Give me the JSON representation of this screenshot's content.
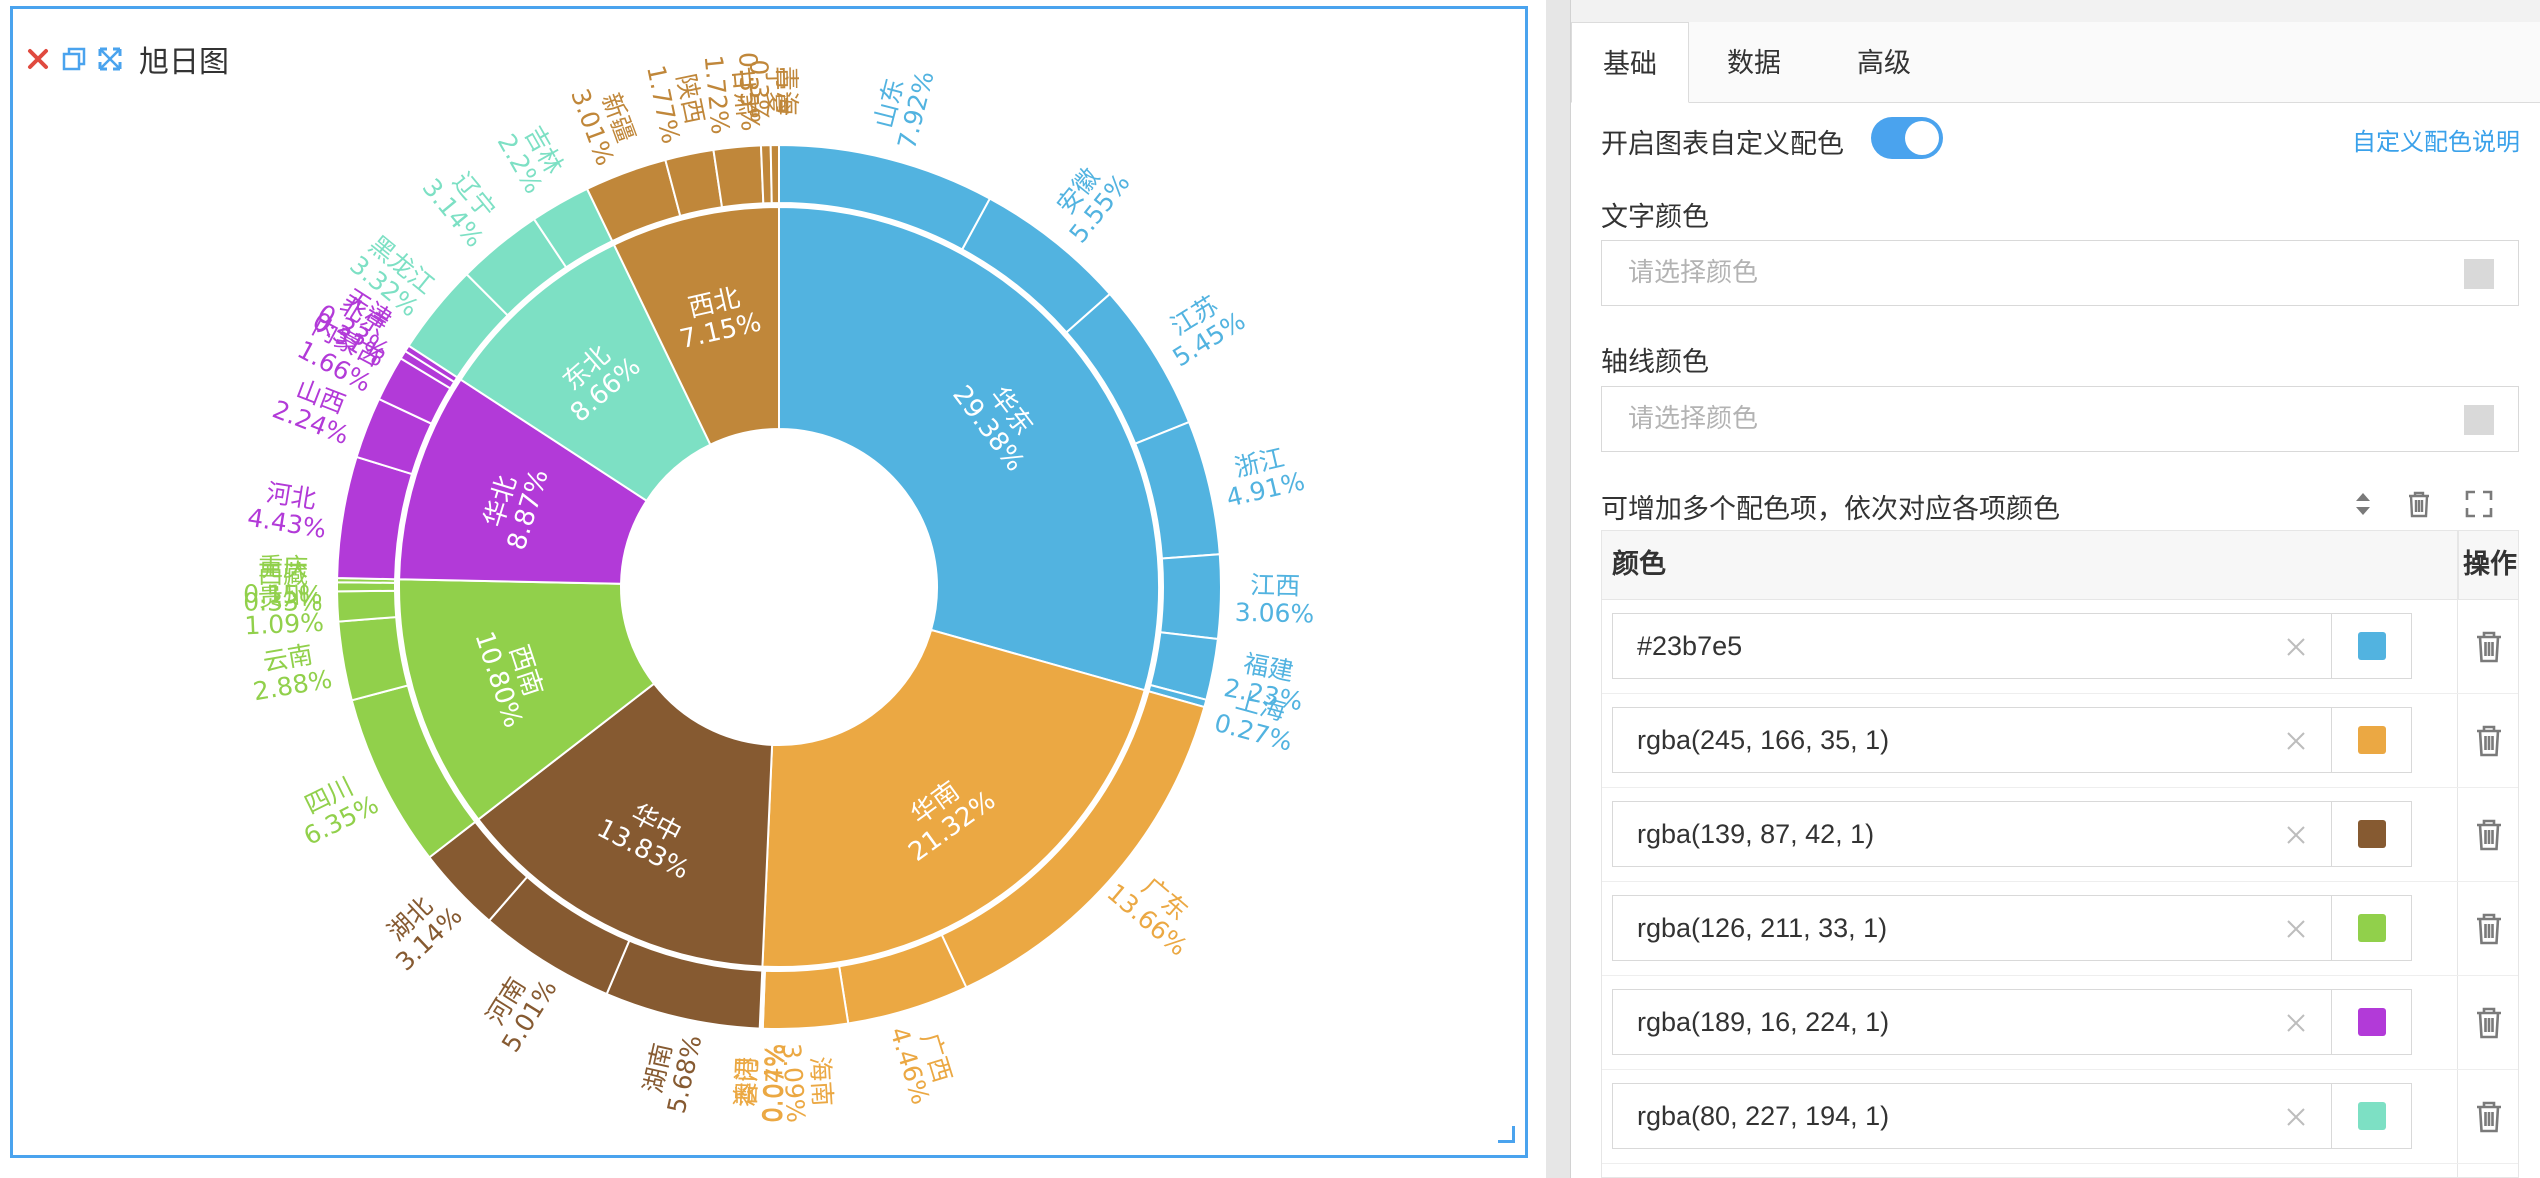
{
  "chart": {
    "title": "旭日图",
    "toolbar": {
      "close_icon": "close-icon",
      "copy_icon": "copy-icon",
      "fullscreen_icon": "expand-icon"
    }
  },
  "chart_data": {
    "type": "sunburst",
    "title": "旭日图",
    "unit": "%",
    "colors": {
      "华东": "#52b3e0",
      "华南": "#eba843",
      "华中": "#865a31",
      "西南": "#91d04b",
      "华北": "#b23ad8",
      "东北": "#7de0c4",
      "西北": "#c0873a"
    },
    "regions": [
      {
        "name": "华东",
        "value": 29.38,
        "children": [
          {
            "name": "山东",
            "value": 7.92
          },
          {
            "name": "安徽",
            "value": 5.55
          },
          {
            "name": "江苏",
            "value": 5.45
          },
          {
            "name": "浙江",
            "value": 4.91
          },
          {
            "name": "江西",
            "value": 3.06
          },
          {
            "name": "福建",
            "value": 2.23
          },
          {
            "name": "上海",
            "value": 0.27
          }
        ]
      },
      {
        "name": "华南",
        "value": 21.32,
        "children": [
          {
            "name": "广东",
            "value": 13.66
          },
          {
            "name": "广西",
            "value": 4.46
          },
          {
            "name": "海南",
            "value": 3.09
          },
          {
            "name": "香港",
            "value": 0.07
          },
          {
            "name": "澳门",
            "value": 0.04
          }
        ]
      },
      {
        "name": "华中",
        "value": 13.83,
        "children": [
          {
            "name": "湖南",
            "value": 5.68
          },
          {
            "name": "河南",
            "value": 5.01
          },
          {
            "name": "湖北",
            "value": 3.14
          }
        ]
      },
      {
        "name": "西南",
        "value": 10.8,
        "children": [
          {
            "name": "四川",
            "value": 6.35
          },
          {
            "name": "云南",
            "value": 2.88
          },
          {
            "name": "贵州",
            "value": 1.09
          },
          {
            "name": "西藏",
            "value": 0.33
          },
          {
            "name": "重庆",
            "value": 0.15
          }
        ]
      },
      {
        "name": "华北",
        "value": 8.87,
        "children": [
          {
            "name": "河北",
            "value": 4.43
          },
          {
            "name": "山西",
            "value": 2.24
          },
          {
            "name": "内蒙古",
            "value": 1.66
          },
          {
            "name": "北京",
            "value": 0.31
          },
          {
            "name": "天津",
            "value": 0.23
          }
        ]
      },
      {
        "name": "东北",
        "value": 8.66,
        "children": [
          {
            "name": "黑龙江",
            "value": 3.32
          },
          {
            "name": "辽宁",
            "value": 3.14
          },
          {
            "name": "吉林",
            "value": 2.2
          }
        ]
      },
      {
        "name": "西北",
        "value": 7.15,
        "children": [
          {
            "name": "新疆",
            "value": 3.01
          },
          {
            "name": "陕西",
            "value": 1.77
          },
          {
            "name": "甘肃",
            "value": 1.72
          },
          {
            "name": "宁夏",
            "value": 0.35
          },
          {
            "name": "青海",
            "value": 0.3
          }
        ]
      }
    ]
  },
  "settings": {
    "tabs": [
      {
        "label": "基础"
      },
      {
        "label": "数据"
      },
      {
        "label": "高级"
      }
    ],
    "custom_color_label": "开启图表自定义配色",
    "custom_color_enabled": true,
    "custom_color_link": "自定义配色说明",
    "text_color_label": "文字颜色",
    "text_color_placeholder": "请选择颜色",
    "axis_color_label": "轴线颜色",
    "axis_color_placeholder": "请选择颜色",
    "palette_label": "可增加多个配色项，依次对应各项颜色",
    "table_headers": {
      "color": "颜色",
      "operation": "操作"
    },
    "palette": [
      {
        "value": "#23b7e5",
        "chip": "#52b3e0"
      },
      {
        "value": "rgba(245, 166, 35, 1)",
        "chip": "#eba843"
      },
      {
        "value": "rgba(139, 87, 42, 1)",
        "chip": "#865a31"
      },
      {
        "value": "rgba(126, 211, 33, 1)",
        "chip": "#91d04b"
      },
      {
        "value": "rgba(189, 16, 224, 1)",
        "chip": "#b23ad8"
      },
      {
        "value": "rgba(80, 227, 194, 1)",
        "chip": "#7de0c4"
      }
    ]
  }
}
